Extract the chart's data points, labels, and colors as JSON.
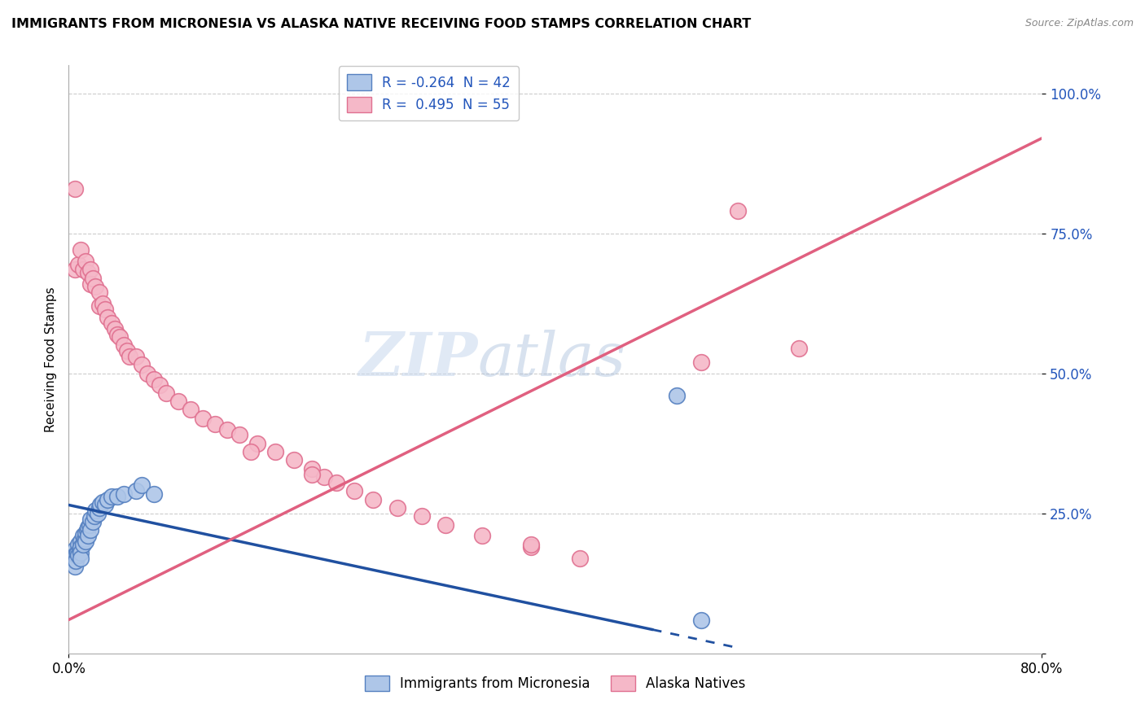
{
  "title": "IMMIGRANTS FROM MICRONESIA VS ALASKA NATIVE RECEIVING FOOD STAMPS CORRELATION CHART",
  "source": "Source: ZipAtlas.com",
  "ylabel": "Receiving Food Stamps",
  "xlim": [
    0.0,
    0.8
  ],
  "ylim": [
    0.0,
    1.05
  ],
  "xtick_positions": [
    0.0,
    0.8
  ],
  "xticklabels": [
    "0.0%",
    "80.0%"
  ],
  "ytick_positions": [
    0.0,
    0.25,
    0.5,
    0.75,
    1.0
  ],
  "ytick_labels": [
    "",
    "25.0%",
    "50.0%",
    "75.0%",
    "100.0%"
  ],
  "legend_r_blue": "-0.264",
  "legend_n_blue": "42",
  "legend_r_pink": "0.495",
  "legend_n_pink": "55",
  "blue_fill": "#aec6e8",
  "blue_edge": "#5580c0",
  "pink_fill": "#f5b8c8",
  "pink_edge": "#e07090",
  "blue_line_color": "#2050a0",
  "pink_line_color": "#e06080",
  "watermark": "ZIPatlas",
  "blue_scatter_x": [
    0.005,
    0.005,
    0.005,
    0.005,
    0.006,
    0.006,
    0.007,
    0.008,
    0.008,
    0.009,
    0.01,
    0.01,
    0.01,
    0.01,
    0.012,
    0.012,
    0.013,
    0.014,
    0.014,
    0.015,
    0.016,
    0.016,
    0.017,
    0.018,
    0.018,
    0.02,
    0.021,
    0.022,
    0.024,
    0.025,
    0.026,
    0.028,
    0.03,
    0.032,
    0.035,
    0.04,
    0.045,
    0.055,
    0.06,
    0.07,
    0.5,
    0.52
  ],
  "blue_scatter_y": [
    0.185,
    0.175,
    0.165,
    0.155,
    0.175,
    0.165,
    0.18,
    0.195,
    0.175,
    0.185,
    0.2,
    0.19,
    0.18,
    0.17,
    0.21,
    0.195,
    0.205,
    0.215,
    0.2,
    0.22,
    0.225,
    0.21,
    0.23,
    0.24,
    0.22,
    0.235,
    0.245,
    0.255,
    0.25,
    0.26,
    0.265,
    0.27,
    0.265,
    0.275,
    0.28,
    0.28,
    0.285,
    0.29,
    0.3,
    0.285,
    0.46,
    0.06
  ],
  "pink_scatter_x": [
    0.005,
    0.005,
    0.008,
    0.01,
    0.012,
    0.014,
    0.016,
    0.018,
    0.018,
    0.02,
    0.022,
    0.025,
    0.025,
    0.028,
    0.03,
    0.032,
    0.035,
    0.038,
    0.04,
    0.042,
    0.045,
    0.048,
    0.05,
    0.055,
    0.06,
    0.065,
    0.07,
    0.075,
    0.08,
    0.09,
    0.1,
    0.11,
    0.12,
    0.13,
    0.14,
    0.155,
    0.17,
    0.185,
    0.2,
    0.21,
    0.22,
    0.235,
    0.25,
    0.27,
    0.29,
    0.31,
    0.34,
    0.38,
    0.42,
    0.2,
    0.52,
    0.15,
    0.38,
    0.55,
    0.6
  ],
  "pink_scatter_y": [
    0.83,
    0.685,
    0.695,
    0.72,
    0.685,
    0.7,
    0.68,
    0.685,
    0.66,
    0.67,
    0.655,
    0.645,
    0.62,
    0.625,
    0.615,
    0.6,
    0.59,
    0.58,
    0.57,
    0.565,
    0.55,
    0.54,
    0.53,
    0.53,
    0.515,
    0.5,
    0.49,
    0.48,
    0.465,
    0.45,
    0.435,
    0.42,
    0.41,
    0.4,
    0.39,
    0.375,
    0.36,
    0.345,
    0.33,
    0.315,
    0.305,
    0.29,
    0.275,
    0.26,
    0.245,
    0.23,
    0.21,
    0.19,
    0.17,
    0.32,
    0.52,
    0.36,
    0.195,
    0.79,
    0.545
  ],
  "blue_line_x0": 0.0,
  "blue_line_x1": 0.55,
  "blue_line_y0": 0.265,
  "blue_line_y1": 0.01,
  "pink_line_x0": 0.0,
  "pink_line_x1": 0.8,
  "pink_line_y0": 0.06,
  "pink_line_y1": 0.92
}
